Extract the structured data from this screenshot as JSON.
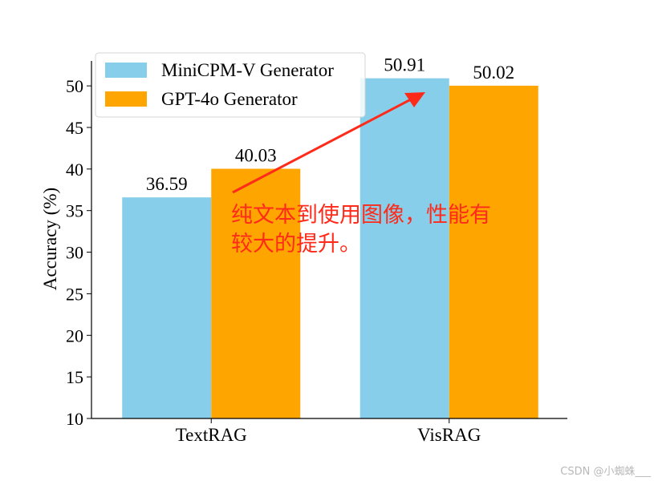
{
  "chart_data": {
    "type": "bar",
    "categories": [
      "TextRAG",
      "VisRAG"
    ],
    "series": [
      {
        "name": "MiniCPM-V Generator",
        "values": [
          36.59,
          50.91
        ],
        "color": "#87CEEB"
      },
      {
        "name": "GPT-4o Generator",
        "values": [
          40.03,
          50.02
        ],
        "color": "#FFA500"
      }
    ],
    "data_labels": [
      [
        "36.59",
        "50.91"
      ],
      [
        "40.03",
        "50.02"
      ]
    ],
    "ylabel": "Accuracy (%)",
    "ylim": [
      10,
      53
    ],
    "yticks": [
      10,
      15,
      20,
      25,
      30,
      35,
      40,
      45,
      50
    ],
    "legend_position": "top-left",
    "grid": false
  },
  "annotation": {
    "lines": [
      "纯文本到使用图像，性能有",
      "较大的提升。"
    ],
    "color": "#ff2a1a"
  },
  "watermark": "CSDN @小蜘蛛___"
}
